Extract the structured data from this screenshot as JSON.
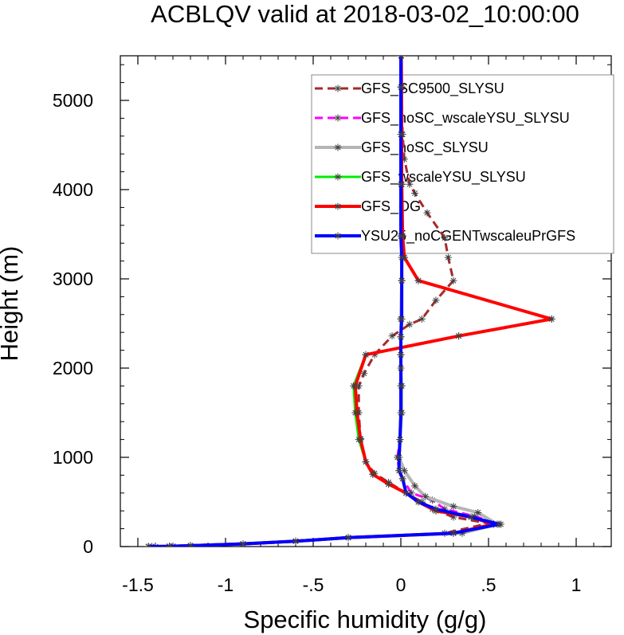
{
  "chart_data": {
    "type": "line",
    "title": "ACBLQV valid at 2018-03-02_10:00:00",
    "xlabel": "Specific humidity (g/g)",
    "ylabel": "Height (m)",
    "xlim": [
      -1.6,
      1.2
    ],
    "ylim": [
      0,
      5500
    ],
    "x_ticks": [
      -1.5,
      -1,
      -0.5,
      0,
      0.5,
      1
    ],
    "x_tick_labels": [
      "-1.5",
      "-1",
      "-.5",
      "0",
      ".5",
      "1"
    ],
    "y_ticks": [
      0,
      1000,
      2000,
      3000,
      4000,
      5000
    ],
    "y_tick_labels": [
      "0",
      "1000",
      "2000",
      "3000",
      "4000",
      "5000"
    ],
    "grid": false,
    "legend_position": "top-right",
    "series": [
      {
        "name": "GFS_SC9500_SLYSU",
        "color": "#a52a2a",
        "dash": "10,6",
        "width": 3,
        "points": [
          [
            -1.4,
            0
          ],
          [
            -1.3,
            3
          ],
          [
            -1.2,
            10
          ],
          [
            -0.9,
            30
          ],
          [
            -0.6,
            60
          ],
          [
            -0.3,
            100
          ],
          [
            0.25,
            150
          ],
          [
            0.5,
            260
          ],
          [
            0.3,
            330
          ],
          [
            0.18,
            420
          ],
          [
            0.12,
            500
          ],
          [
            0.03,
            600
          ],
          [
            -0.07,
            720
          ],
          [
            -0.15,
            820
          ],
          [
            -0.2,
            950
          ],
          [
            -0.23,
            1210
          ],
          [
            -0.24,
            1500
          ],
          [
            -0.24,
            1800
          ],
          [
            -0.21,
            1940
          ],
          [
            -0.15,
            2150
          ],
          [
            -0.05,
            2360
          ],
          [
            0.05,
            2490
          ],
          [
            0.12,
            2550
          ],
          [
            0.2,
            2760
          ],
          [
            0.3,
            2980
          ],
          [
            0.27,
            3240
          ],
          [
            0.25,
            3460
          ],
          [
            0.15,
            3740
          ],
          [
            0.08,
            3960
          ],
          [
            0.05,
            4060
          ],
          [
            0.02,
            4340
          ],
          [
            0.01,
            4620
          ],
          [
            0.005,
            5150
          ],
          [
            0.002,
            5500
          ]
        ]
      },
      {
        "name": "GFS_noSC_wscaleYSU_SLYSU",
        "color": "#ff00ff",
        "dash": "10,6",
        "width": 3,
        "points": [
          [
            -1.42,
            0
          ],
          [
            -1.3,
            3
          ],
          [
            -1.2,
            10
          ],
          [
            -0.9,
            30
          ],
          [
            -0.6,
            60
          ],
          [
            -0.3,
            100
          ],
          [
            0.3,
            150
          ],
          [
            0.57,
            250
          ],
          [
            0.42,
            340
          ],
          [
            0.25,
            420
          ],
          [
            0.18,
            520
          ],
          [
            0.06,
            600
          ],
          [
            0.01,
            760
          ],
          [
            -0.01,
            850
          ],
          [
            -0.02,
            1000
          ],
          [
            -0.005,
            1200
          ],
          [
            0.005,
            1500
          ],
          [
            0.005,
            1800
          ],
          [
            0.0,
            2000
          ],
          [
            0.0,
            2150
          ],
          [
            0.0,
            2350
          ],
          [
            0.0,
            2550
          ],
          [
            0.005,
            2980
          ],
          [
            0.005,
            3480
          ],
          [
            0.005,
            4060
          ],
          [
            0.005,
            4620
          ],
          [
            0.004,
            5150
          ],
          [
            0.003,
            5500
          ]
        ]
      },
      {
        "name": "GFS_noSC_SLYSU",
        "color": "#b5b5b5",
        "dash": "",
        "width": 4,
        "points": [
          [
            -1.44,
            0
          ],
          [
            -1.32,
            3
          ],
          [
            -1.2,
            10
          ],
          [
            -0.9,
            30
          ],
          [
            -0.6,
            60
          ],
          [
            -0.3,
            100
          ],
          [
            0.35,
            150
          ],
          [
            0.55,
            250
          ],
          [
            0.44,
            380
          ],
          [
            0.3,
            450
          ],
          [
            0.14,
            560
          ],
          [
            0.08,
            680
          ],
          [
            0.02,
            850
          ],
          [
            -0.01,
            1000
          ],
          [
            -0.005,
            1200
          ],
          [
            0.005,
            1500
          ],
          [
            0.005,
            1800
          ],
          [
            0.0,
            2000
          ],
          [
            0.0,
            2150
          ],
          [
            0.0,
            2350
          ],
          [
            0.0,
            2550
          ],
          [
            0.005,
            2980
          ],
          [
            0.005,
            3480
          ],
          [
            0.005,
            4060
          ],
          [
            0.005,
            4620
          ],
          [
            0.004,
            5150
          ],
          [
            0.003,
            5500
          ]
        ]
      },
      {
        "name": "GFS_wscaleYSU_SLYSU",
        "color": "#00ee00",
        "dash": "",
        "width": 3,
        "points": [
          [
            -1.44,
            0
          ],
          [
            -1.32,
            3
          ],
          [
            -1.2,
            10
          ],
          [
            -0.9,
            30
          ],
          [
            -0.6,
            60
          ],
          [
            -0.3,
            100
          ],
          [
            0.3,
            150
          ],
          [
            0.55,
            250
          ],
          [
            0.4,
            330
          ],
          [
            0.2,
            400
          ],
          [
            0.1,
            500
          ],
          [
            0.03,
            600
          ],
          [
            -0.07,
            700
          ],
          [
            -0.16,
            810
          ],
          [
            -0.2,
            950
          ],
          [
            -0.24,
            1200
          ],
          [
            -0.26,
            1500
          ],
          [
            -0.27,
            1800
          ],
          [
            -0.2,
            2150
          ],
          [
            0.33,
            2360
          ],
          [
            0.86,
            2550
          ],
          [
            0.1,
            2980
          ],
          [
            0.02,
            3240
          ],
          [
            0.01,
            3480
          ],
          [
            0.005,
            4060
          ],
          [
            0.004,
            4620
          ],
          [
            0.003,
            5150
          ],
          [
            0.002,
            5500
          ]
        ]
      },
      {
        "name": "GFS_OG",
        "color": "#ff0000",
        "dash": "",
        "width": 4,
        "points": [
          [
            -1.44,
            0
          ],
          [
            -1.32,
            3
          ],
          [
            -1.2,
            10
          ],
          [
            -0.9,
            30
          ],
          [
            -0.6,
            60
          ],
          [
            -0.3,
            100
          ],
          [
            0.3,
            150
          ],
          [
            0.53,
            250
          ],
          [
            0.4,
            330
          ],
          [
            0.2,
            400
          ],
          [
            0.1,
            500
          ],
          [
            0.03,
            600
          ],
          [
            -0.07,
            700
          ],
          [
            -0.16,
            810
          ],
          [
            -0.2,
            950
          ],
          [
            -0.23,
            1200
          ],
          [
            -0.25,
            1500
          ],
          [
            -0.26,
            1800
          ],
          [
            -0.2,
            2150
          ],
          [
            0.33,
            2360
          ],
          [
            0.86,
            2550
          ],
          [
            0.1,
            2980
          ],
          [
            0.02,
            3240
          ],
          [
            0.01,
            3480
          ],
          [
            0.005,
            4060
          ],
          [
            0.004,
            4620
          ],
          [
            0.003,
            5150
          ],
          [
            0.002,
            5500
          ]
        ]
      },
      {
        "name": "YSU25_noCGENTwscaleuPrGFS",
        "color": "#0000ff",
        "dash": "",
        "width": 4,
        "points": [
          [
            -1.44,
            0
          ],
          [
            -1.32,
            3
          ],
          [
            -1.2,
            10
          ],
          [
            -0.9,
            30
          ],
          [
            -0.6,
            60
          ],
          [
            -0.3,
            100
          ],
          [
            0.3,
            150
          ],
          [
            0.56,
            250
          ],
          [
            0.4,
            330
          ],
          [
            0.2,
            420
          ],
          [
            0.1,
            500
          ],
          [
            0.03,
            600
          ],
          [
            0.01,
            760
          ],
          [
            -0.01,
            850
          ],
          [
            -0.01,
            1000
          ],
          [
            -0.005,
            1200
          ],
          [
            0.0,
            1500
          ],
          [
            0.0,
            1800
          ],
          [
            0.0,
            2000
          ],
          [
            0.0,
            2150
          ],
          [
            0.0,
            2350
          ],
          [
            0.005,
            2550
          ],
          [
            0.005,
            2980
          ],
          [
            0.005,
            3240
          ],
          [
            0.0,
            3480
          ],
          [
            0.0,
            4060
          ],
          [
            0.0,
            4620
          ],
          [
            0.0,
            5150
          ],
          [
            0.0,
            5500
          ]
        ]
      }
    ]
  }
}
